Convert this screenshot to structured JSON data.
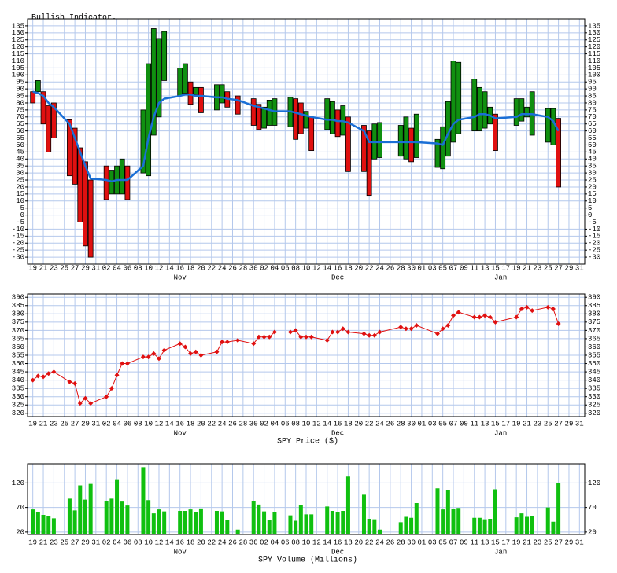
{
  "chart_data": [
    {
      "type": "candlestick",
      "title": "Bullish Indicator.",
      "x": [
        0,
        1,
        2,
        3,
        4,
        7,
        8,
        9,
        10,
        11,
        14,
        15,
        16,
        17,
        18,
        21,
        22,
        23,
        24,
        25,
        28,
        29,
        30,
        31,
        32,
        35,
        36,
        37,
        39,
        42,
        43,
        44,
        45,
        46,
        49,
        50,
        51,
        52,
        53,
        56,
        57,
        58,
        59,
        60,
        63,
        64,
        65,
        66,
        70,
        71,
        72,
        73,
        77,
        78,
        79,
        80,
        81,
        84,
        85,
        86,
        87,
        88,
        92,
        93,
        94,
        95,
        98,
        99,
        100
      ],
      "open": [
        88,
        88,
        88,
        78,
        80,
        68,
        62,
        48,
        38,
        25,
        35,
        15,
        15,
        15,
        35,
        30,
        28,
        57,
        70,
        96,
        85,
        87,
        95,
        86,
        91,
        75,
        80,
        88,
        85,
        83,
        79,
        62,
        64,
        64,
        63,
        83,
        80,
        62,
        70,
        61,
        58,
        75,
        57,
        70,
        64,
        60,
        40,
        41,
        42,
        40,
        62,
        41,
        34,
        33,
        42,
        52,
        58,
        60,
        60,
        62,
        65,
        72,
        64,
        67,
        70,
        57,
        52,
        50,
        69
      ],
      "close": [
        80,
        96,
        65,
        45,
        55,
        28,
        22,
        -5,
        -22,
        -30,
        11,
        32,
        35,
        40,
        11,
        75,
        108,
        133,
        126,
        131,
        105,
        108,
        79,
        91,
        73,
        93,
        93,
        77,
        72,
        64,
        61,
        77,
        82,
        83,
        84,
        54,
        58,
        74,
        46,
        83,
        81,
        56,
        78,
        31,
        31,
        14,
        65,
        66,
        64,
        70,
        38,
        72,
        54,
        63,
        81,
        110,
        109,
        97,
        91,
        88,
        77,
        46,
        83,
        83,
        77,
        88,
        76,
        76,
        20
      ],
      "ma_values": [
        88,
        87,
        85,
        80,
        77,
        65,
        55,
        45,
        35,
        26,
        25,
        24,
        25,
        25,
        25,
        35,
        55,
        70,
        80,
        83,
        85,
        86,
        86,
        85,
        85,
        84,
        84,
        83,
        82,
        78,
        77,
        76,
        75,
        74,
        74,
        73,
        72,
        71,
        70,
        68,
        68,
        67,
        67,
        66,
        60,
        52,
        52,
        52,
        52,
        52,
        52,
        52,
        51,
        50,
        58,
        65,
        68,
        70,
        72,
        72,
        71,
        69,
        70,
        72,
        72,
        72,
        70,
        67,
        60
      ],
      "up_color": "#109010",
      "down_color": "#e01010",
      "ma_color": "#1a6fd6",
      "xlim": [
        -1,
        105
      ],
      "xticks": [
        {
          "value": 0,
          "label": "19"
        },
        {
          "value": 2,
          "label": "21"
        },
        {
          "value": 4,
          "label": "23"
        },
        {
          "value": 6,
          "label": "25"
        },
        {
          "value": 8,
          "label": "27"
        },
        {
          "value": 10,
          "label": "29"
        },
        {
          "value": 12,
          "label": "31"
        },
        {
          "value": 14,
          "label": "02"
        },
        {
          "value": 16,
          "label": "04"
        },
        {
          "value": 18,
          "label": "06"
        },
        {
          "value": 20,
          "label": "08"
        },
        {
          "value": 22,
          "label": "10"
        },
        {
          "value": 24,
          "label": "12"
        },
        {
          "value": 26,
          "label": "14"
        },
        {
          "value": 28,
          "label": "16"
        },
        {
          "value": 30,
          "label": "18"
        },
        {
          "value": 32,
          "label": "20"
        },
        {
          "value": 34,
          "label": "22"
        },
        {
          "value": 36,
          "label": "24"
        },
        {
          "value": 38,
          "label": "26"
        },
        {
          "value": 40,
          "label": "28"
        },
        {
          "value": 42,
          "label": "30"
        },
        {
          "value": 44,
          "label": "02"
        },
        {
          "value": 46,
          "label": "04"
        },
        {
          "value": 48,
          "label": "06"
        },
        {
          "value": 50,
          "label": "08"
        },
        {
          "value": 52,
          "label": "10"
        },
        {
          "value": 54,
          "label": "12"
        },
        {
          "value": 56,
          "label": "14"
        },
        {
          "value": 58,
          "label": "16"
        },
        {
          "value": 60,
          "label": "18"
        },
        {
          "value": 62,
          "label": "20"
        },
        {
          "value": 64,
          "label": "22"
        },
        {
          "value": 66,
          "label": "24"
        },
        {
          "value": 68,
          "label": "26"
        },
        {
          "value": 70,
          "label": "28"
        },
        {
          "value": 72,
          "label": "30"
        },
        {
          "value": 74,
          "label": "01"
        },
        {
          "value": 76,
          "label": "03"
        },
        {
          "value": 78,
          "label": "05"
        },
        {
          "value": 80,
          "label": "07"
        },
        {
          "value": 82,
          "label": "09"
        },
        {
          "value": 84,
          "label": "11"
        },
        {
          "value": 86,
          "label": "13"
        },
        {
          "value": 88,
          "label": "15"
        },
        {
          "value": 90,
          "label": "17"
        },
        {
          "value": 92,
          "label": "19"
        },
        {
          "value": 94,
          "label": "21"
        },
        {
          "value": 96,
          "label": "23"
        },
        {
          "value": 98,
          "label": "25"
        },
        {
          "value": 100,
          "label": "27"
        },
        {
          "value": 102,
          "label": "29"
        },
        {
          "value": 104,
          "label": "31"
        }
      ],
      "month_labels": [
        {
          "value": 28,
          "label": "Nov"
        },
        {
          "value": 58,
          "label": "Dec"
        },
        {
          "value": 89,
          "label": "Jan"
        }
      ],
      "ylim": [
        -35,
        140
      ],
      "yticks": [
        -30,
        -25,
        -20,
        -15,
        -10,
        -5,
        0,
        5,
        10,
        15,
        20,
        25,
        30,
        35,
        40,
        45,
        50,
        55,
        60,
        65,
        70,
        75,
        80,
        85,
        90,
        95,
        100,
        105,
        110,
        115,
        120,
        125,
        130,
        135
      ],
      "grid": true
    },
    {
      "type": "line",
      "title": "SPY Price ($)",
      "x": [
        0,
        1,
        2,
        3,
        4,
        7,
        8,
        9,
        10,
        11,
        14,
        15,
        16,
        17,
        18,
        21,
        22,
        23,
        24,
        25,
        28,
        29,
        30,
        31,
        32,
        35,
        36,
        37,
        39,
        42,
        43,
        44,
        45,
        46,
        49,
        50,
        51,
        52,
        53,
        56,
        57,
        58,
        59,
        60,
        63,
        64,
        65,
        66,
        70,
        71,
        72,
        73,
        77,
        78,
        79,
        80,
        81,
        84,
        85,
        86,
        87,
        88,
        92,
        93,
        94,
        95,
        98,
        99,
        100
      ],
      "values": [
        340,
        342.5,
        342,
        344,
        345,
        339,
        338,
        326,
        329,
        326,
        330,
        335,
        343,
        350,
        350,
        354,
        354,
        356,
        353,
        358,
        362,
        360,
        356,
        357,
        355,
        357,
        363,
        363,
        364,
        362,
        366,
        366,
        366,
        369,
        369,
        370,
        366,
        366,
        366,
        364,
        369,
        369,
        371,
        369,
        368,
        367,
        367,
        369,
        372,
        371,
        371,
        373,
        368,
        371,
        373,
        379,
        381,
        378,
        378,
        379,
        378,
        375,
        378,
        383,
        384,
        382,
        384,
        383,
        374
      ],
      "color": "#e01010",
      "xlim": [
        -1,
        105
      ],
      "xticks": [
        {
          "value": 0,
          "label": "19"
        },
        {
          "value": 2,
          "label": "21"
        },
        {
          "value": 4,
          "label": "23"
        },
        {
          "value": 6,
          "label": "25"
        },
        {
          "value": 8,
          "label": "27"
        },
        {
          "value": 10,
          "label": "29"
        },
        {
          "value": 12,
          "label": "31"
        },
        {
          "value": 14,
          "label": "02"
        },
        {
          "value": 16,
          "label": "04"
        },
        {
          "value": 18,
          "label": "06"
        },
        {
          "value": 20,
          "label": "08"
        },
        {
          "value": 22,
          "label": "10"
        },
        {
          "value": 24,
          "label": "12"
        },
        {
          "value": 26,
          "label": "14"
        },
        {
          "value": 28,
          "label": "16"
        },
        {
          "value": 30,
          "label": "18"
        },
        {
          "value": 32,
          "label": "20"
        },
        {
          "value": 34,
          "label": "22"
        },
        {
          "value": 36,
          "label": "24"
        },
        {
          "value": 38,
          "label": "26"
        },
        {
          "value": 40,
          "label": "28"
        },
        {
          "value": 42,
          "label": "30"
        },
        {
          "value": 44,
          "label": "02"
        },
        {
          "value": 46,
          "label": "04"
        },
        {
          "value": 48,
          "label": "06"
        },
        {
          "value": 50,
          "label": "08"
        },
        {
          "value": 52,
          "label": "10"
        },
        {
          "value": 54,
          "label": "12"
        },
        {
          "value": 56,
          "label": "14"
        },
        {
          "value": 58,
          "label": "16"
        },
        {
          "value": 60,
          "label": "18"
        },
        {
          "value": 62,
          "label": "20"
        },
        {
          "value": 64,
          "label": "22"
        },
        {
          "value": 66,
          "label": "24"
        },
        {
          "value": 68,
          "label": "26"
        },
        {
          "value": 70,
          "label": "28"
        },
        {
          "value": 72,
          "label": "30"
        },
        {
          "value": 74,
          "label": "01"
        },
        {
          "value": 76,
          "label": "03"
        },
        {
          "value": 78,
          "label": "05"
        },
        {
          "value": 80,
          "label": "07"
        },
        {
          "value": 82,
          "label": "09"
        },
        {
          "value": 84,
          "label": "11"
        },
        {
          "value": 86,
          "label": "13"
        },
        {
          "value": 88,
          "label": "15"
        },
        {
          "value": 90,
          "label": "17"
        },
        {
          "value": 92,
          "label": "19"
        },
        {
          "value": 94,
          "label": "21"
        },
        {
          "value": 96,
          "label": "23"
        },
        {
          "value": 98,
          "label": "25"
        },
        {
          "value": 100,
          "label": "27"
        },
        {
          "value": 102,
          "label": "29"
        },
        {
          "value": 104,
          "label": "31"
        }
      ],
      "month_labels": [
        {
          "value": 28,
          "label": "Nov"
        },
        {
          "value": 58,
          "label": "Dec"
        },
        {
          "value": 89,
          "label": "Jan"
        }
      ],
      "ylim": [
        318,
        392
      ],
      "yticks": [
        320,
        325,
        330,
        335,
        340,
        345,
        350,
        355,
        360,
        365,
        370,
        375,
        380,
        385,
        390
      ],
      "grid": true
    },
    {
      "type": "bar",
      "title": "SPY Volume (Millions)",
      "x": [
        0,
        1,
        2,
        3,
        4,
        7,
        8,
        9,
        10,
        11,
        14,
        15,
        16,
        17,
        18,
        21,
        22,
        23,
        24,
        25,
        28,
        29,
        30,
        31,
        32,
        35,
        36,
        37,
        39,
        42,
        43,
        44,
        45,
        46,
        49,
        50,
        51,
        52,
        53,
        56,
        57,
        58,
        59,
        60,
        63,
        64,
        65,
        66,
        70,
        71,
        72,
        73,
        77,
        78,
        79,
        80,
        81,
        84,
        85,
        86,
        87,
        88,
        92,
        93,
        94,
        95,
        98,
        99,
        100
      ],
      "values": [
        66,
        60,
        55,
        53,
        48,
        88,
        64,
        115,
        86,
        118,
        83,
        88,
        126,
        82,
        74,
        152,
        85,
        58,
        66,
        62,
        63,
        63,
        66,
        60,
        68,
        63,
        62,
        45,
        25,
        83,
        76,
        62,
        44,
        60,
        54,
        43,
        75,
        56,
        56,
        72,
        63,
        60,
        63,
        133,
        96,
        47,
        46,
        25,
        40,
        51,
        49,
        79,
        109,
        66,
        105,
        67,
        69,
        49,
        49,
        46,
        47,
        107,
        50,
        58,
        51,
        52,
        70,
        41,
        120
      ],
      "color": "#10c010",
      "xlim": [
        -1,
        105
      ],
      "xticks": [
        {
          "value": 0,
          "label": "19"
        },
        {
          "value": 2,
          "label": "21"
        },
        {
          "value": 4,
          "label": "23"
        },
        {
          "value": 6,
          "label": "25"
        },
        {
          "value": 8,
          "label": "27"
        },
        {
          "value": 10,
          "label": "29"
        },
        {
          "value": 12,
          "label": "31"
        },
        {
          "value": 14,
          "label": "02"
        },
        {
          "value": 16,
          "label": "04"
        },
        {
          "value": 18,
          "label": "06"
        },
        {
          "value": 20,
          "label": "08"
        },
        {
          "value": 22,
          "label": "10"
        },
        {
          "value": 24,
          "label": "12"
        },
        {
          "value": 26,
          "label": "14"
        },
        {
          "value": 28,
          "label": "16"
        },
        {
          "value": 30,
          "label": "18"
        },
        {
          "value": 32,
          "label": "20"
        },
        {
          "value": 34,
          "label": "22"
        },
        {
          "value": 36,
          "label": "24"
        },
        {
          "value": 38,
          "label": "26"
        },
        {
          "value": 40,
          "label": "28"
        },
        {
          "value": 42,
          "label": "30"
        },
        {
          "value": 44,
          "label": "02"
        },
        {
          "value": 46,
          "label": "04"
        },
        {
          "value": 48,
          "label": "06"
        },
        {
          "value": 50,
          "label": "08"
        },
        {
          "value": 52,
          "label": "10"
        },
        {
          "value": 54,
          "label": "12"
        },
        {
          "value": 56,
          "label": "14"
        },
        {
          "value": 58,
          "label": "16"
        },
        {
          "value": 60,
          "label": "18"
        },
        {
          "value": 62,
          "label": "20"
        },
        {
          "value": 64,
          "label": "22"
        },
        {
          "value": 66,
          "label": "24"
        },
        {
          "value": 68,
          "label": "26"
        },
        {
          "value": 70,
          "label": "28"
        },
        {
          "value": 72,
          "label": "30"
        },
        {
          "value": 74,
          "label": "01"
        },
        {
          "value": 76,
          "label": "03"
        },
        {
          "value": 78,
          "label": "05"
        },
        {
          "value": 80,
          "label": "07"
        },
        {
          "value": 82,
          "label": "09"
        },
        {
          "value": 84,
          "label": "11"
        },
        {
          "value": 86,
          "label": "13"
        },
        {
          "value": 88,
          "label": "15"
        },
        {
          "value": 90,
          "label": "17"
        },
        {
          "value": 92,
          "label": "19"
        },
        {
          "value": 94,
          "label": "21"
        },
        {
          "value": 96,
          "label": "23"
        },
        {
          "value": 98,
          "label": "25"
        },
        {
          "value": 100,
          "label": "27"
        },
        {
          "value": 102,
          "label": "29"
        },
        {
          "value": 104,
          "label": "31"
        }
      ],
      "month_labels": [
        {
          "value": 28,
          "label": "Nov"
        },
        {
          "value": 58,
          "label": "Dec"
        },
        {
          "value": 89,
          "label": "Jan"
        }
      ],
      "ylim": [
        15,
        159
      ],
      "yticks": [
        20,
        70,
        120
      ],
      "grid": true
    }
  ]
}
